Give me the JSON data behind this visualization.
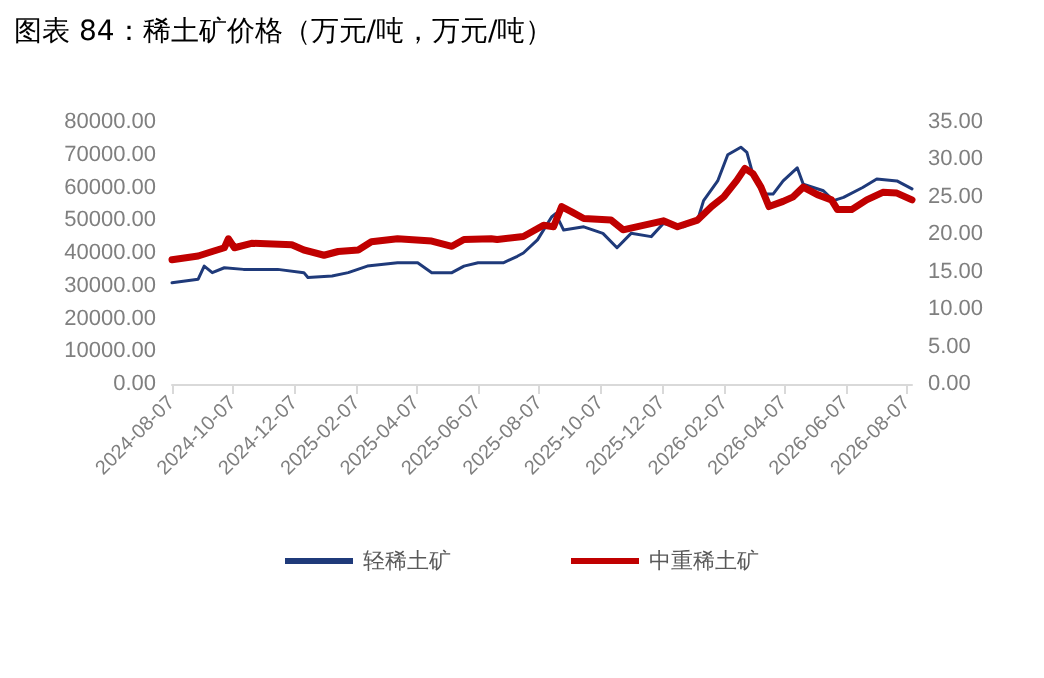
{
  "chart_data": {
    "type": "line",
    "title": "图表 84：稀土矿价格（万元/吨，万元/吨）",
    "series": [
      {
        "name": "轻稀土矿",
        "color": "#1f3a7a",
        "x": [
          "2024-08-07",
          "2024-09-02",
          "2024-09-08",
          "2024-09-16",
          "2024-09-28",
          "2024-10-17",
          "2024-11-20",
          "2024-12-16",
          "2024-12-20",
          "2025-01-13",
          "2025-01-29",
          "2025-02-17",
          "2025-03-19",
          "2025-04-08",
          "2025-04-22",
          "2025-05-12",
          "2025-05-24",
          "2025-06-07",
          "2025-07-02",
          "2025-07-16",
          "2025-07-22",
          "2025-08-05",
          "2025-08-19",
          "2025-08-23",
          "2025-08-31",
          "2025-09-20",
          "2025-10-09",
          "2025-10-23",
          "2025-11-06",
          "2025-11-26",
          "2025-12-08",
          "2025-12-28",
          "2026-01-11",
          "2026-01-17",
          "2026-01-31",
          "2026-02-10",
          "2026-02-23",
          "2026-03-01",
          "2026-03-07",
          "2026-03-17",
          "2026-03-27",
          "2026-04-06",
          "2026-04-20",
          "2026-04-26",
          "2026-05-16",
          "2026-05-26",
          "2026-06-05",
          "2026-06-24",
          "2026-07-08",
          "2026-07-28",
          "2026-08-12"
        ],
        "values": [
          30900,
          32000,
          36000,
          34000,
          35500,
          35000,
          35000,
          34000,
          32500,
          33000,
          34000,
          36000,
          37000,
          37000,
          34000,
          34000,
          36000,
          37000,
          37000,
          39000,
          40000,
          44000,
          51000,
          52000,
          47000,
          48000,
          46000,
          41600,
          46000,
          45000,
          49000,
          48000,
          50000,
          56000,
          62000,
          70000,
          72300,
          70700,
          64000,
          58000,
          58000,
          62000,
          66000,
          61000,
          59000,
          56000,
          57000,
          60000,
          62600,
          62000,
          59600
        ]
      },
      {
        "name": "中重稀土矿",
        "color": "#c00000",
        "axis": "y2",
        "x": [
          "2024-08-07",
          "2024-09-02",
          "2024-09-16",
          "2024-09-28",
          "2024-10-02",
          "2024-10-08",
          "2024-10-25",
          "2024-12-04",
          "2024-12-16",
          "2025-01-05",
          "2025-01-19",
          "2025-02-08",
          "2025-02-21",
          "2025-03-19",
          "2025-04-22",
          "2025-05-12",
          "2025-05-24",
          "2025-06-20",
          "2025-06-26",
          "2025-07-22",
          "2025-08-11",
          "2025-08-21",
          "2025-08-29",
          "2025-09-08",
          "2025-09-20",
          "2025-10-17",
          "2025-10-29",
          "2025-11-18",
          "2025-12-08",
          "2025-12-22",
          "2026-01-11",
          "2026-01-25",
          "2026-02-06",
          "2026-02-19",
          "2026-02-27",
          "2026-03-07",
          "2026-03-15",
          "2026-03-23",
          "2026-04-06",
          "2026-04-16",
          "2026-04-26",
          "2026-05-10",
          "2026-05-24",
          "2026-05-30",
          "2026-06-13",
          "2026-06-28",
          "2026-07-14",
          "2026-07-28",
          "2026-08-12"
        ],
        "values": [
          16.6,
          17.1,
          17.7,
          18.2,
          19.4,
          18.2,
          18.8,
          18.6,
          17.9,
          17.2,
          17.7,
          17.9,
          19.0,
          19.4,
          19.1,
          18.4,
          19.3,
          19.4,
          19.3,
          19.7,
          21.2,
          21.0,
          23.7,
          23.0,
          22.1,
          21.9,
          20.6,
          21.2,
          21.8,
          21.0,
          21.9,
          23.7,
          25.0,
          27.2,
          28.8,
          28.1,
          26.3,
          23.7,
          24.4,
          25.0,
          26.3,
          25.3,
          24.6,
          23.3,
          23.3,
          24.6,
          25.6,
          25.5,
          24.6
        ]
      }
    ],
    "xlim": [
      "2024-08-07",
      "2026-08-12"
    ],
    "xticks": [
      "2024-08-07",
      "2024-10-07",
      "2024-12-07",
      "2025-02-07",
      "2025-04-07",
      "2025-06-07",
      "2025-08-07",
      "2025-10-07",
      "2025-12-07",
      "2026-02-07",
      "2026-04-07",
      "2026-06-07",
      "2026-08-07"
    ],
    "ylim": [
      0,
      80000
    ],
    "yticks": [
      {
        "value": 0,
        "label": "0.00"
      },
      {
        "value": 10000,
        "label": "10000.00"
      },
      {
        "value": 20000,
        "label": "20000.00"
      },
      {
        "value": 30000,
        "label": "30000.00"
      },
      {
        "value": 40000,
        "label": "40000.00"
      },
      {
        "value": 50000,
        "label": "50000.00"
      },
      {
        "value": 60000,
        "label": "60000.00"
      },
      {
        "value": 70000,
        "label": "70000.00"
      },
      {
        "value": 80000,
        "label": "80000.00"
      }
    ],
    "y2lim": [
      0,
      35
    ],
    "y2ticks": [
      {
        "value": 0,
        "label": "0.00"
      },
      {
        "value": 5,
        "label": "5.00"
      },
      {
        "value": 10,
        "label": "10.00"
      },
      {
        "value": 15,
        "label": "15.00"
      },
      {
        "value": 20,
        "label": "20.00"
      },
      {
        "value": 25,
        "label": "25.00"
      },
      {
        "value": 30,
        "label": "30.00"
      },
      {
        "value": 35,
        "label": "35.00"
      }
    ],
    "legend": "bottom",
    "grid": false,
    "marker": "none",
    "line_style": "solid"
  }
}
